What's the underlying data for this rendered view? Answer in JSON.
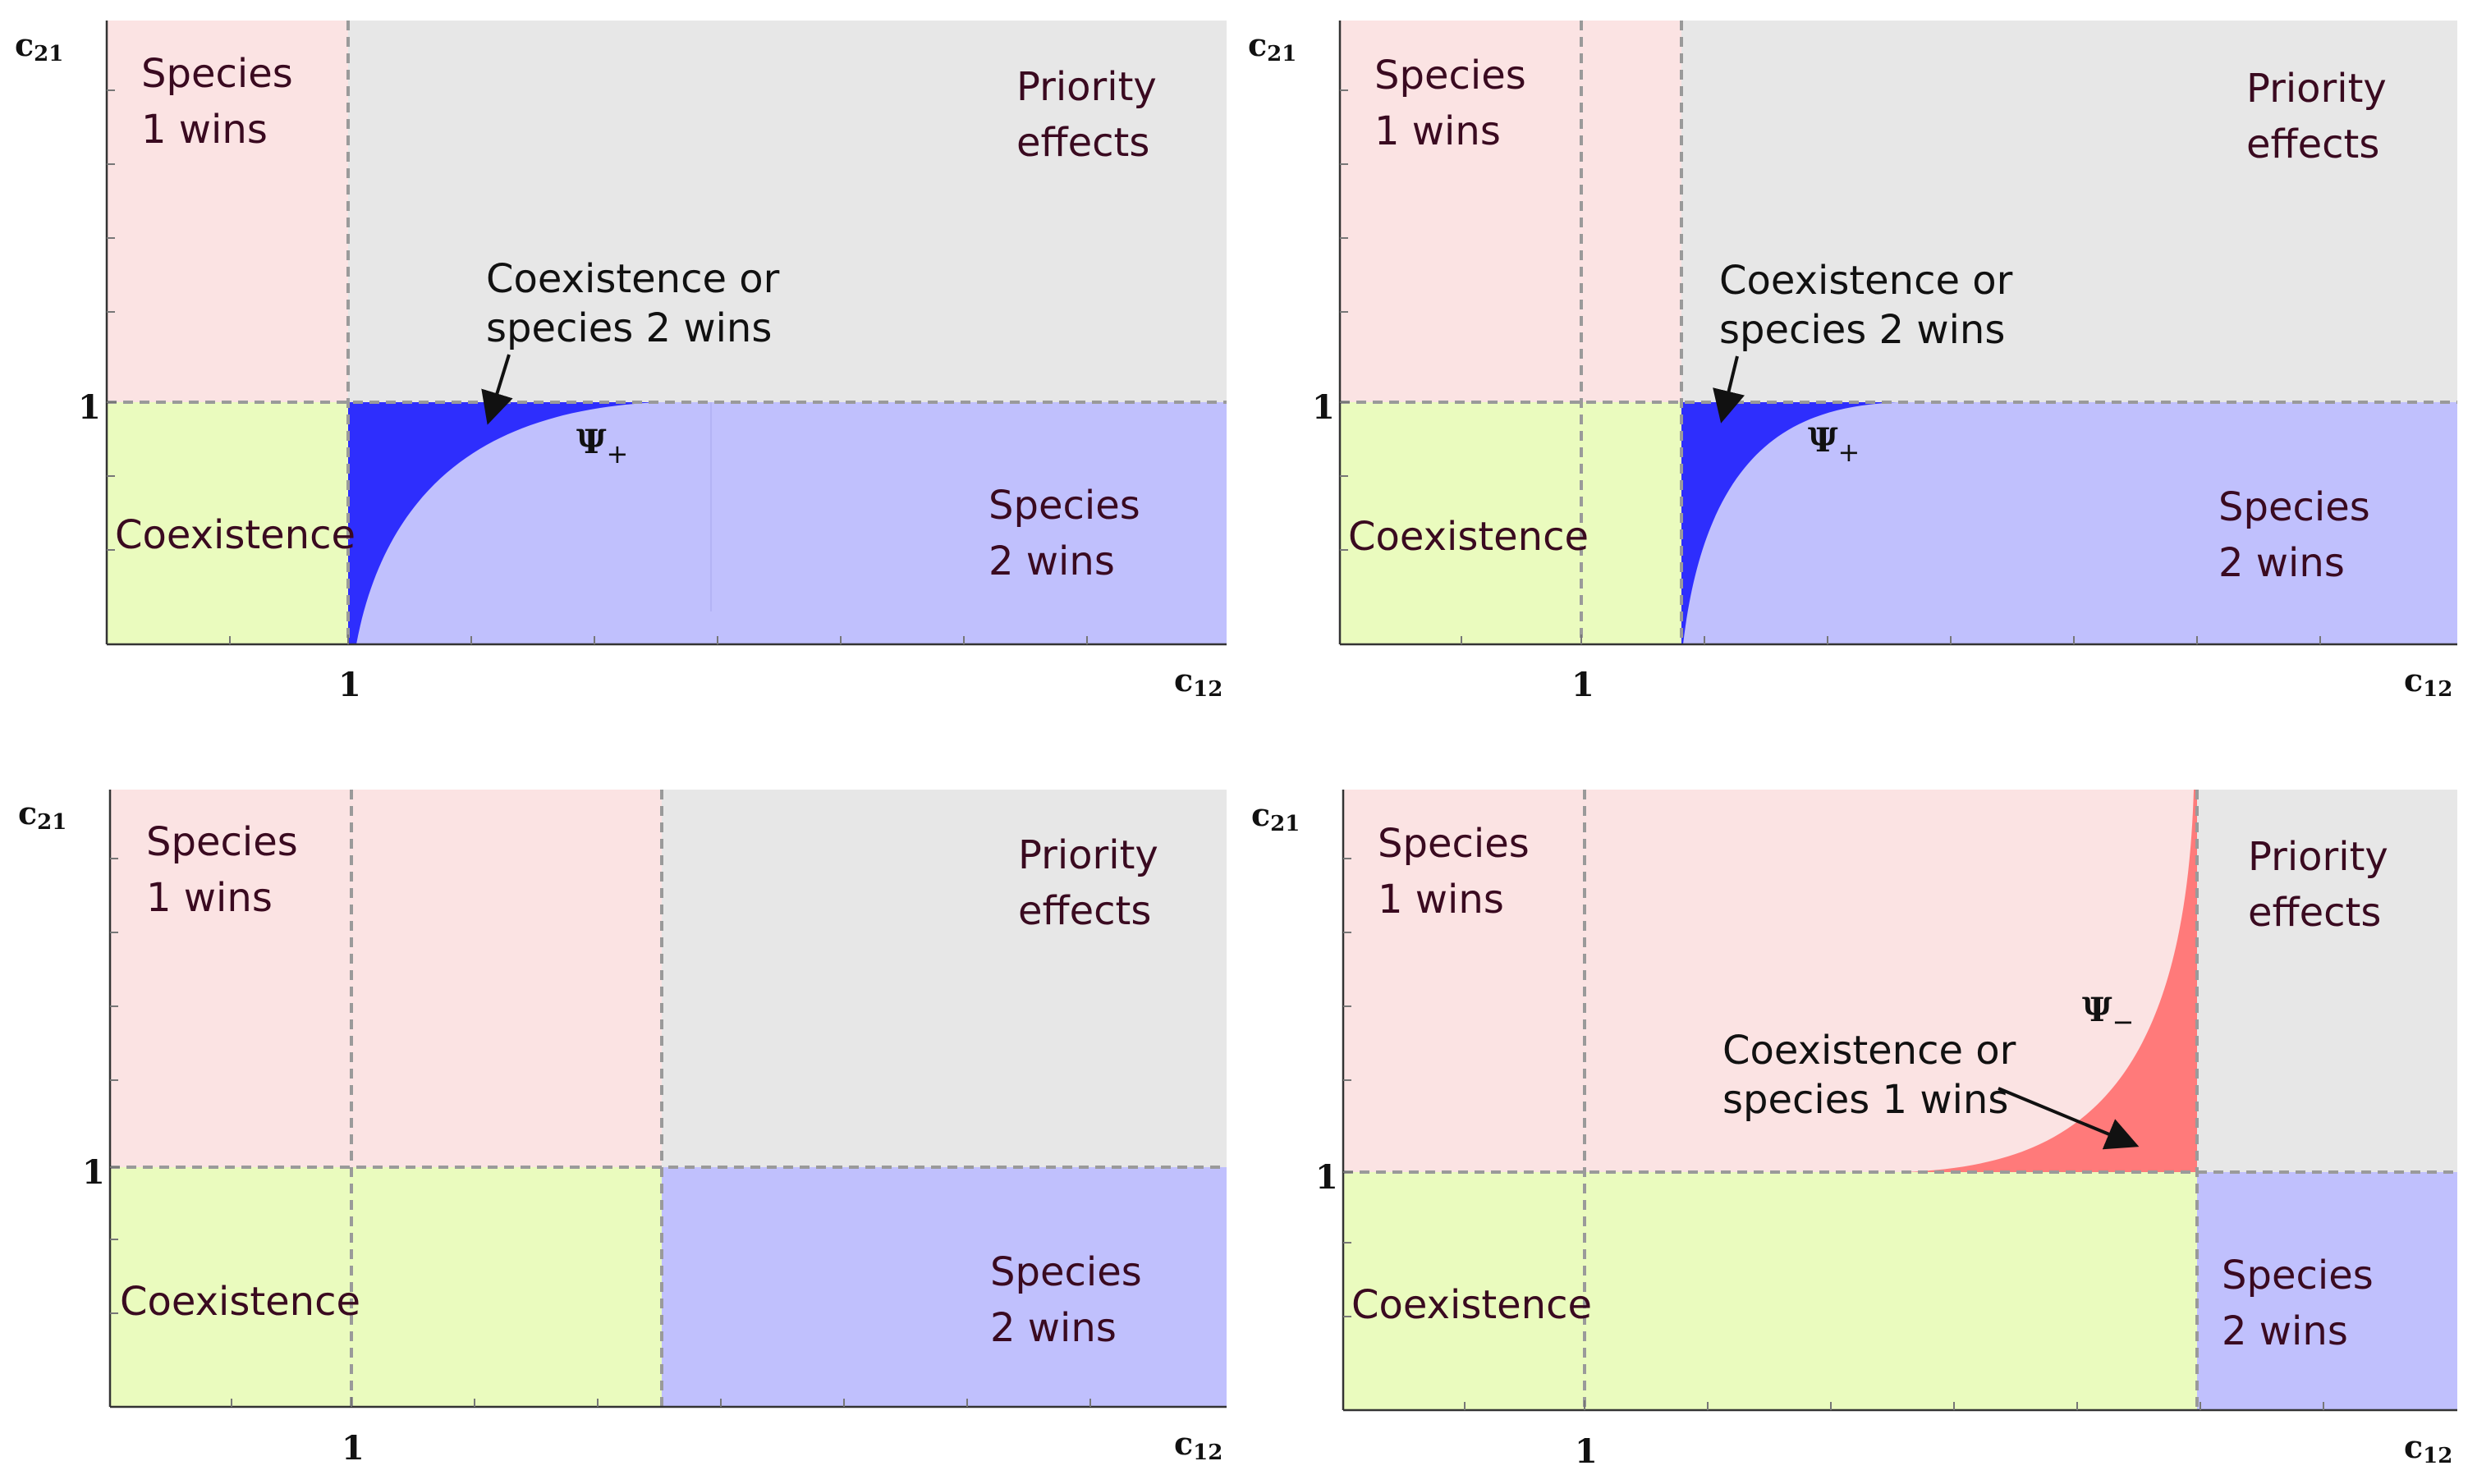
{
  "figure": {
    "colors": {
      "species1_region": "#fbe3e3",
      "priority_region": "#e7e7e7",
      "coexistence_region": "#eafbbe",
      "species2_region": "#c0c0fd",
      "psi_plus_region": "#2e2efd",
      "psi_minus_region": "#ff7a7a"
    },
    "panels": [
      {
        "id": "top-left",
        "axis_x_label": "c",
        "axis_x_sub": "12",
        "axis_y_label": "c",
        "axis_y_sub": "21",
        "tick_x_one": "1",
        "tick_y_one": "1",
        "species1_label": [
          "Species",
          "1 wins"
        ],
        "priority_label": [
          "Priority",
          "effects"
        ],
        "coexistence_label": "Coexistence",
        "species2_label": [
          "Species",
          "2 wins"
        ],
        "annotation": [
          "Coexistence or",
          "species 2 wins"
        ],
        "psi_symbol": "Ψ",
        "psi_sub": "+"
      },
      {
        "id": "top-right",
        "axis_x_label": "c",
        "axis_x_sub": "12",
        "axis_y_label": "c",
        "axis_y_sub": "21",
        "tick_x_one": "1",
        "tick_y_one": "1",
        "species1_label": [
          "Species",
          "1 wins"
        ],
        "priority_label": [
          "Priority",
          "effects"
        ],
        "coexistence_label": "Coexistence",
        "species2_label": [
          "Species",
          "2 wins"
        ],
        "annotation": [
          "Coexistence or",
          "species 2 wins"
        ],
        "psi_symbol": "Ψ",
        "psi_sub": "+"
      },
      {
        "id": "bottom-left",
        "axis_y_label": "c",
        "axis_y_sub": "21",
        "axis_x_label": "c",
        "axis_x_sub": "12",
        "tick_x_one": "1",
        "tick_y_one": "1",
        "species1_label": [
          "Species",
          "1 wins"
        ],
        "priority_label": [
          "Priority",
          "effects"
        ],
        "coexistence_label": "Coexistence",
        "species2_label": [
          "Species",
          "2 wins"
        ]
      },
      {
        "id": "bottom-right",
        "axis_y_label": "c",
        "axis_y_sub": "21",
        "axis_x_label": "c",
        "axis_x_sub": "12",
        "tick_x_one": "1",
        "tick_y_one": "1",
        "species1_label": [
          "Species",
          "1 wins"
        ],
        "priority_label": [
          "Priority",
          "effects"
        ],
        "coexistence_label": "Coexistence",
        "species2_label": [
          "Species",
          "2 wins"
        ],
        "annotation": [
          "Coexistence or",
          "species 1 wins"
        ],
        "psi_symbol": "Ψ",
        "psi_sub": "−"
      }
    ]
  }
}
